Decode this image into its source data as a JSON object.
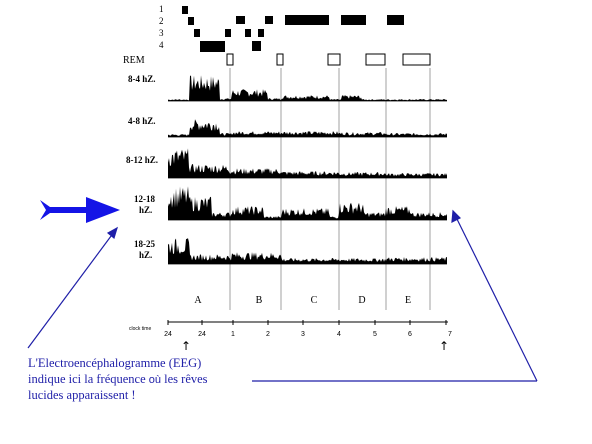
{
  "stage_labels": [
    "1",
    "2",
    "3",
    "4"
  ],
  "rem_label": "REM",
  "band_labels": [
    [
      "8-4 hZ."
    ],
    [
      "4-8 hZ."
    ],
    [
      "8-12 hZ."
    ],
    [
      "12-18",
      "hZ."
    ],
    [
      "18-25",
      "hZ."
    ]
  ],
  "sleep_cycles": [
    "A",
    "B",
    "C",
    "D",
    "E"
  ],
  "clock_label": "clock time",
  "clock_ticks": [
    "24",
    "24",
    "1",
    "2",
    "3",
    "4",
    "5",
    "6",
    "7"
  ],
  "arrow_symbol": "↑",
  "caption": {
    "line1": "L'Electroencéphalogramme (EEG)",
    "line2_a": "indique ici la fréquence ",
    "line2_b": "où",
    "line2_c": " les rêves",
    "line3": "lucides apparaissent !"
  },
  "colors": {
    "trace": "#000000",
    "highlight_arrow": "#1414e6",
    "annotation": "#1f1fa8"
  }
}
